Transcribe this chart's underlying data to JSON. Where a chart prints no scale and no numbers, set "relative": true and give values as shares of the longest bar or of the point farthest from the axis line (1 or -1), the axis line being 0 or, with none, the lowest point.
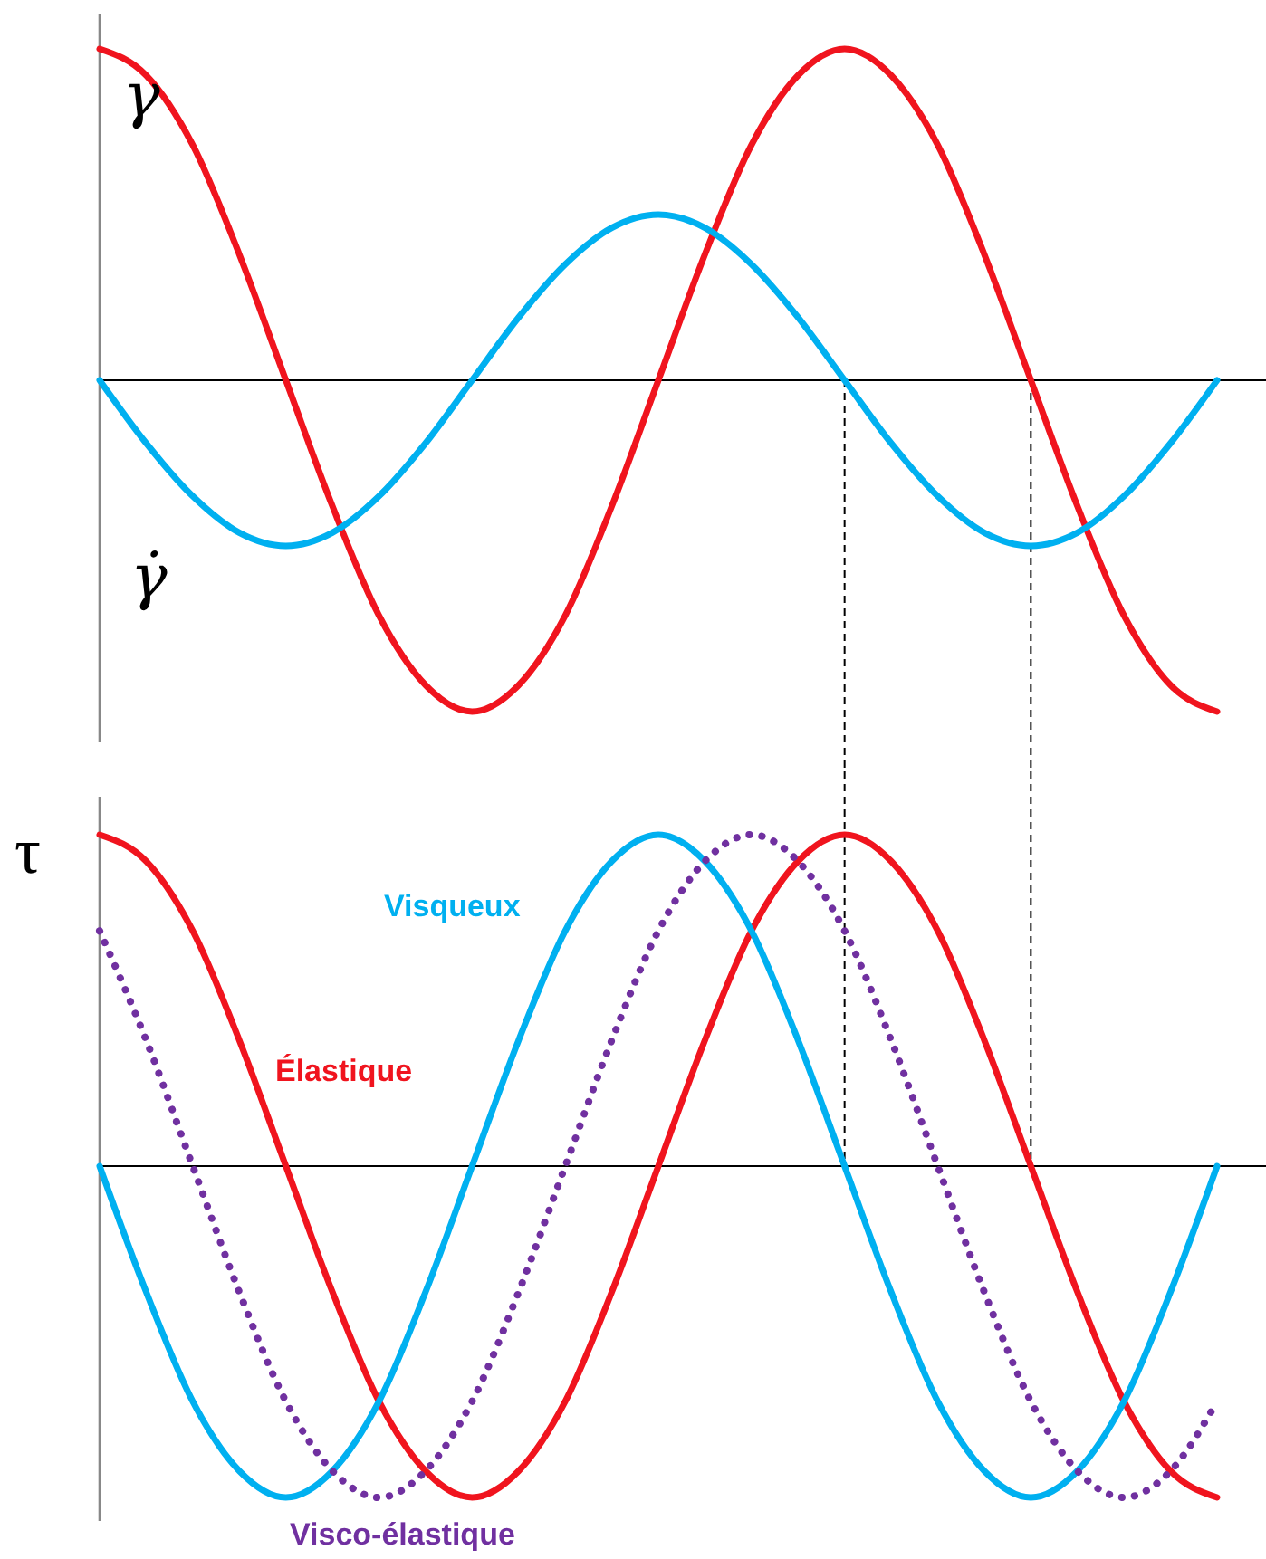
{
  "chart_data": [
    {
      "type": "line",
      "relative": true,
      "categories": [
        null,
        null,
        null,
        null,
        null,
        null,
        null,
        null,
        null,
        null,
        null,
        null,
        null,
        null,
        null,
        null,
        null,
        null,
        null,
        null,
        null,
        null,
        null,
        null,
        null
      ],
      "series": [
        {
          "name": "γ",
          "color": "#f0141e",
          "values": [
            1,
            0.92,
            0.71,
            0.38,
            0,
            -0.38,
            -0.71,
            -0.92,
            -1,
            -0.92,
            -0.71,
            -0.38,
            0,
            0.38,
            0.71,
            0.92,
            1,
            0.92,
            0.71,
            0.38,
            0,
            -0.38,
            -0.71,
            -0.92,
            -1
          ]
        },
        {
          "name": "γ̇",
          "color": "#00b0f0",
          "values": [
            0,
            -0.19,
            -0.35,
            -0.46,
            -0.5,
            -0.46,
            -0.35,
            -0.19,
            0,
            0.19,
            0.35,
            0.46,
            0.5,
            0.46,
            0.35,
            0.19,
            0,
            -0.19,
            -0.35,
            -0.46,
            -0.5,
            -0.46,
            -0.35,
            -0.19,
            0
          ]
        }
      ]
    },
    {
      "type": "line",
      "relative": true,
      "ylabel": "τ",
      "categories": [
        null,
        null,
        null,
        null,
        null,
        null,
        null,
        null,
        null,
        null,
        null,
        null,
        null,
        null,
        null,
        null,
        null,
        null,
        null,
        null,
        null,
        null,
        null,
        null,
        null
      ],
      "series": [
        {
          "name": "Élastique",
          "color": "#f0141e",
          "values": [
            1,
            0.92,
            0.71,
            0.38,
            0,
            -0.38,
            -0.71,
            -0.92,
            -1,
            -0.92,
            -0.71,
            -0.38,
            0,
            0.38,
            0.71,
            0.92,
            1,
            0.92,
            0.71,
            0.38,
            0,
            -0.38,
            -0.71,
            -0.92,
            -1
          ]
        },
        {
          "name": "Visqueux",
          "color": "#00b0f0",
          "values": [
            0,
            -0.38,
            -0.71,
            -0.92,
            -1,
            -0.92,
            -0.71,
            -0.38,
            0,
            0.38,
            0.71,
            0.92,
            1,
            0.92,
            0.71,
            0.38,
            0,
            -0.38,
            -0.71,
            -0.92,
            -1,
            -0.92,
            -0.71,
            -0.38,
            0
          ]
        },
        {
          "name": "Visco-élastique",
          "color": "#7030a0",
          "line_style": "dotted",
          "values": [
            0.71,
            0.38,
            0,
            -0.38,
            -0.71,
            -0.92,
            -1,
            -0.92,
            -0.71,
            -0.38,
            0,
            0.38,
            0.71,
            0.92,
            1,
            0.92,
            0.71,
            0.38,
            0,
            -0.38,
            -0.71,
            -0.92,
            -1,
            -0.92,
            -0.71
          ]
        }
      ]
    }
  ]
}
